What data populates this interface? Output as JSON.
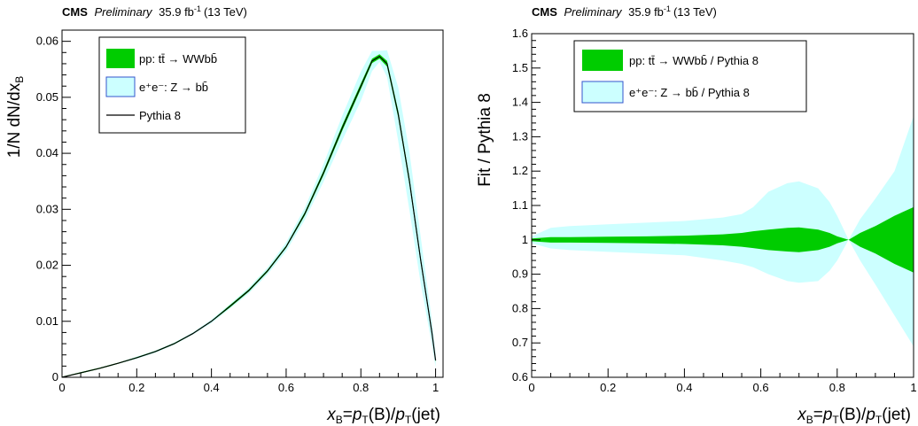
{
  "chart_data": [
    {
      "type": "line",
      "header": {
        "experiment": "CMS",
        "status": "Preliminary",
        "lumi_value": "35.9 fb",
        "lumi_exp": "-1",
        "energy": "(13 TeV)"
      },
      "xlabel": {
        "base": "x",
        "sub": "B",
        "eq": "=",
        "p1": "p",
        "p1sub": "T",
        "mid": "(B)/",
        "p2": "p",
        "p2sub": "T",
        "tail": "(jet)"
      },
      "ylabel": {
        "text": "1/N dN/dx",
        "sub": "B"
      },
      "xlim": [
        0,
        1.02
      ],
      "ylim": [
        0,
        0.062
      ],
      "xticks": [
        {
          "v": 0,
          "label": "0"
        },
        {
          "v": 0.2,
          "label": "0.2"
        },
        {
          "v": 0.4,
          "label": "0.4"
        },
        {
          "v": 0.6,
          "label": "0.6"
        },
        {
          "v": 0.8,
          "label": "0.8"
        },
        {
          "v": 1.0,
          "label": "1"
        }
      ],
      "yticks": [
        {
          "v": 0,
          "label": "0"
        },
        {
          "v": 0.01,
          "label": "0.01"
        },
        {
          "v": 0.02,
          "label": "0.02"
        },
        {
          "v": 0.03,
          "label": "0.03"
        },
        {
          "v": 0.04,
          "label": "0.04"
        },
        {
          "v": 0.05,
          "label": "0.05"
        },
        {
          "v": 0.06,
          "label": "0.06"
        }
      ],
      "legend": [
        {
          "label": "pp: tt̄ → WWbb̄",
          "color": "#00cc00"
        },
        {
          "label": "e⁺e⁻: Z → bb̄",
          "color": "#ccffff"
        },
        {
          "label": "Pythia 8",
          "color": "#000000"
        }
      ],
      "grid": false,
      "legend_position": "top-left",
      "x": [
        0,
        0.05,
        0.1,
        0.15,
        0.2,
        0.25,
        0.3,
        0.35,
        0.4,
        0.45,
        0.5,
        0.55,
        0.6,
        0.65,
        0.7,
        0.75,
        0.8,
        0.83,
        0.85,
        0.87,
        0.9,
        0.93,
        0.96,
        0.99,
        1.0
      ],
      "series": [
        {
          "name": "Pythia 8",
          "values": [
            0.0,
            0.0008,
            0.0016,
            0.0025,
            0.0035,
            0.0046,
            0.006,
            0.0078,
            0.01,
            0.0127,
            0.0155,
            0.019,
            0.0233,
            0.0292,
            0.0365,
            0.0445,
            0.052,
            0.0565,
            0.0573,
            0.056,
            0.047,
            0.035,
            0.021,
            0.008,
            0.003
          ]
        },
        {
          "name": "e⁺e⁻: Z → bb̄",
          "band_halfwidth": [
            0.0001,
            0.0001,
            0.0001,
            0.0001,
            0.0002,
            0.0002,
            0.0002,
            0.0002,
            0.0003,
            0.0004,
            0.0005,
            0.0006,
            0.0008,
            0.0011,
            0.0016,
            0.0022,
            0.0026,
            0.0018,
            0.001,
            0.0024,
            0.0048,
            0.0052,
            0.0042,
            0.0022,
            0.0012
          ]
        },
        {
          "name": "pp: tt̄ → WWbb̄",
          "band_halfwidth": [
            0.0001,
            0.0001,
            0.0001,
            0.0001,
            0.0001,
            0.0001,
            0.0001,
            0.0001,
            0.0001,
            0.0002,
            0.0002,
            0.0002,
            0.0002,
            0.0003,
            0.0004,
            0.0005,
            0.0005,
            0.0004,
            0.0004,
            0.0005,
            0.0006,
            0.0006,
            0.0005,
            0.0004,
            0.0003
          ]
        }
      ]
    },
    {
      "type": "area",
      "header": {
        "experiment": "CMS",
        "status": "Preliminary",
        "lumi_value": "35.9 fb",
        "lumi_exp": "-1",
        "energy": "(13 TeV)"
      },
      "xlabel": {
        "base": "x",
        "sub": "B",
        "eq": "=",
        "p1": "p",
        "p1sub": "T",
        "mid": "(B)/",
        "p2": "p",
        "p2sub": "T",
        "tail": "(jet)"
      },
      "ylabel": {
        "text": "Fit / Pythia 8",
        "sub": ""
      },
      "xlim": [
        0,
        1.0
      ],
      "ylim": [
        0.6,
        1.6
      ],
      "xticks": [
        {
          "v": 0,
          "label": "0"
        },
        {
          "v": 0.2,
          "label": "0.2"
        },
        {
          "v": 0.4,
          "label": "0.4"
        },
        {
          "v": 0.6,
          "label": "0.6"
        },
        {
          "v": 0.8,
          "label": "0.8"
        },
        {
          "v": 1.0,
          "label": "1"
        }
      ],
      "yticks": [
        {
          "v": 0.6,
          "label": "0.6"
        },
        {
          "v": 0.7,
          "label": "0.7"
        },
        {
          "v": 0.8,
          "label": "0.8"
        },
        {
          "v": 0.9,
          "label": "0.9"
        },
        {
          "v": 1.0,
          "label": "1"
        },
        {
          "v": 1.1,
          "label": "1.1"
        },
        {
          "v": 1.2,
          "label": "1.2"
        },
        {
          "v": 1.3,
          "label": "1.3"
        },
        {
          "v": 1.4,
          "label": "1.4"
        },
        {
          "v": 1.5,
          "label": "1.5"
        },
        {
          "v": 1.6,
          "label": "1.6"
        }
      ],
      "legend": [
        {
          "label": "pp: tt̄ → WWbb̄ / Pythia 8",
          "color": "#00cc00"
        },
        {
          "label": "e⁺e⁻: Z → bb̄ / Pythia 8",
          "color": "#ccffff"
        }
      ],
      "grid": false,
      "legend_position": "top-left",
      "x": [
        0,
        0.05,
        0.1,
        0.2,
        0.3,
        0.4,
        0.5,
        0.55,
        0.58,
        0.62,
        0.67,
        0.7,
        0.75,
        0.78,
        0.8,
        0.83,
        0.86,
        0.9,
        0.95,
        1.0
      ],
      "series": [
        {
          "name": "e⁺e⁻: Z → bb̄ / Pythia 8",
          "upper": [
            1.01,
            1.035,
            1.04,
            1.045,
            1.05,
            1.055,
            1.065,
            1.075,
            1.095,
            1.14,
            1.165,
            1.17,
            1.15,
            1.11,
            1.07,
            1.0,
            1.06,
            1.12,
            1.2,
            1.36
          ],
          "lower": [
            0.99,
            0.975,
            0.97,
            0.965,
            0.96,
            0.955,
            0.94,
            0.93,
            0.92,
            0.9,
            0.88,
            0.875,
            0.88,
            0.91,
            0.94,
            1.0,
            0.94,
            0.87,
            0.78,
            0.69
          ]
        },
        {
          "name": "pp: tt̄ → WWbb̄ / Pythia 8",
          "upper": [
            1.004,
            1.008,
            1.008,
            1.009,
            1.01,
            1.012,
            1.016,
            1.02,
            1.025,
            1.03,
            1.035,
            1.036,
            1.03,
            1.02,
            1.01,
            1.0,
            1.02,
            1.04,
            1.07,
            1.095
          ],
          "lower": [
            0.996,
            0.992,
            0.992,
            0.991,
            0.99,
            0.988,
            0.984,
            0.98,
            0.976,
            0.97,
            0.966,
            0.964,
            0.97,
            0.98,
            0.99,
            1.0,
            0.98,
            0.96,
            0.93,
            0.905
          ]
        }
      ]
    }
  ]
}
